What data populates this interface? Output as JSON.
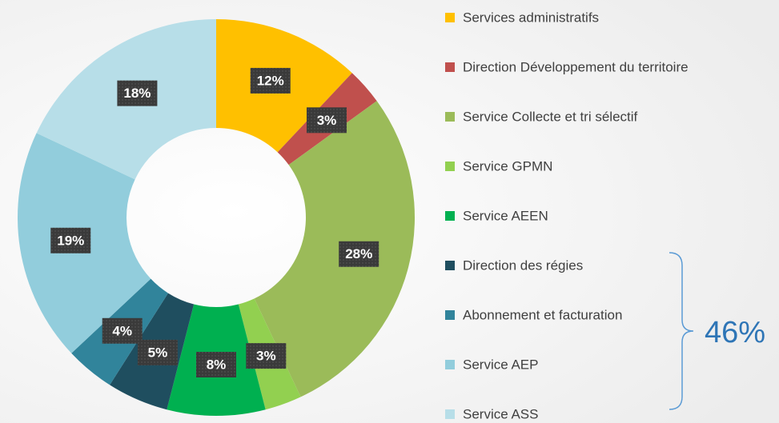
{
  "chart_data": {
    "type": "donut",
    "categories": [
      "Services administratifs",
      "Direction Développement du territoire",
      "Service Collecte et tri sélectif",
      "Service GPMN",
      "Service AEEN",
      "Direction des régies",
      "Abonnement et facturation",
      "Service AEP",
      "Service ASS"
    ],
    "values": [
      12,
      3,
      28,
      3,
      8,
      5,
      4,
      19,
      18
    ],
    "value_labels": [
      "12%",
      "3%",
      "28%",
      "3%",
      "8%",
      "5%",
      "4%",
      "19%",
      "18%"
    ],
    "colors": [
      "#ffc000",
      "#c0504d",
      "#9bbb59",
      "#92d050",
      "#00b050",
      "#1f4e5f",
      "#31849b",
      "#92cddc",
      "#b7dee8"
    ],
    "legend": "right",
    "annotations": [
      {
        "text": "46%"
      }
    ]
  }
}
